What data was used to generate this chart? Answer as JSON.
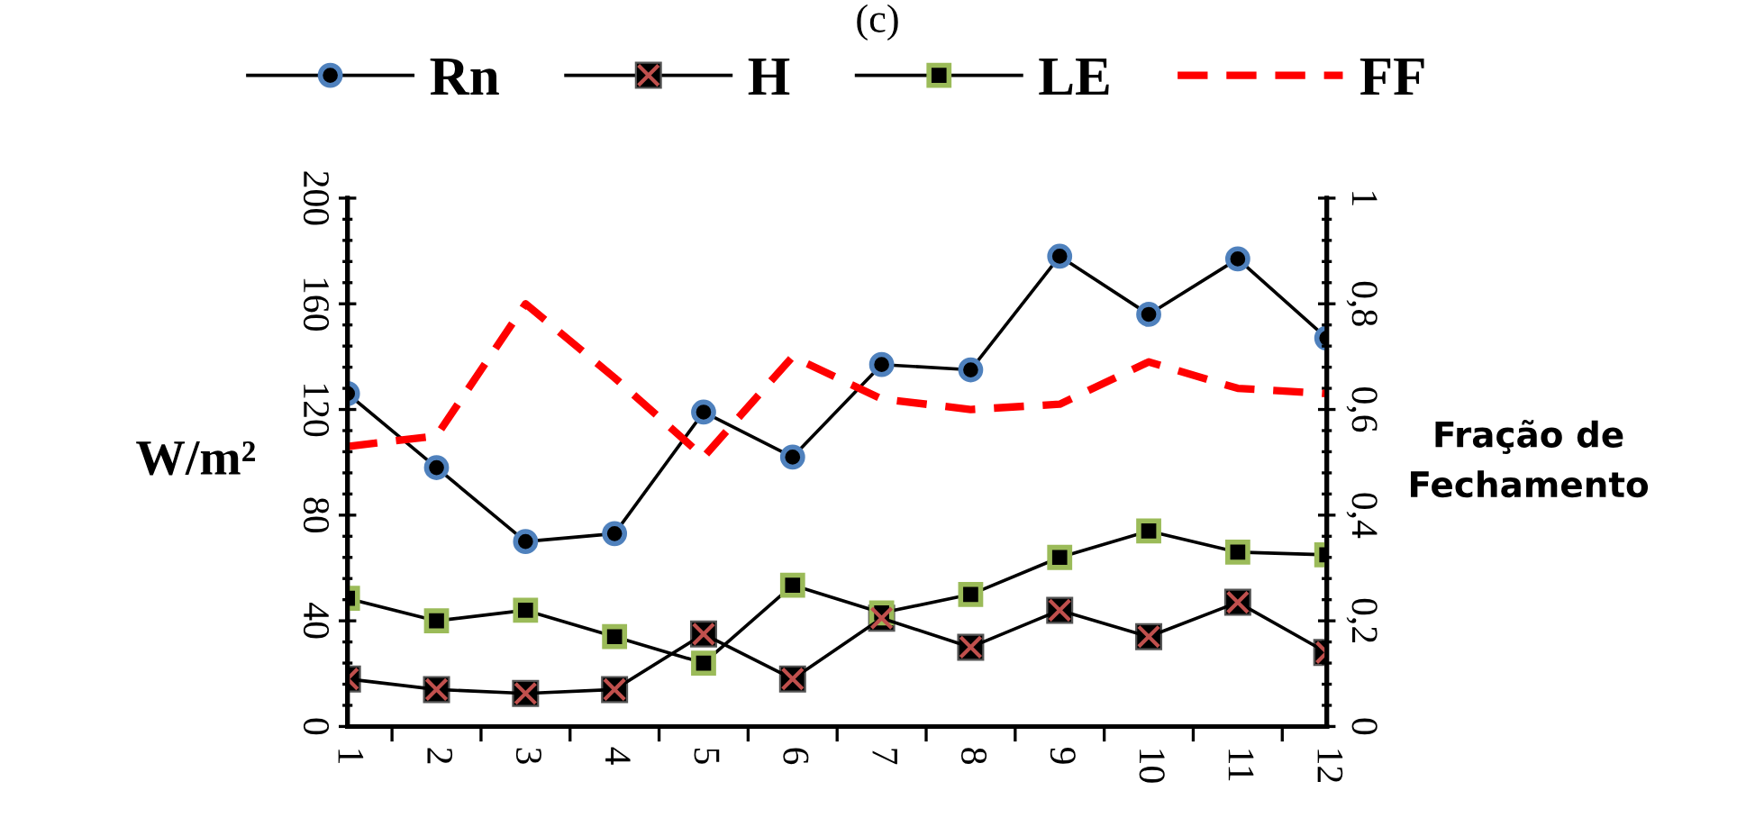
{
  "chart_data": {
    "type": "line",
    "title": "(c)",
    "ylabel": "W/m²",
    "y2label": "Fração de\nFechamento",
    "categories": [
      "1",
      "2",
      "3",
      "4",
      "5",
      "6",
      "7",
      "8",
      "9",
      "10",
      "11",
      "12"
    ],
    "series": [
      {
        "name": "Rn",
        "color": "#4f81bd",
        "marker": "circle",
        "values": [
          126,
          98,
          70,
          73,
          119,
          102,
          137,
          135,
          178,
          156,
          177,
          147
        ]
      },
      {
        "name": "H",
        "color": "#c0504d",
        "marker": "cross",
        "values": [
          18,
          14,
          12.5,
          14,
          35,
          18,
          41,
          30,
          44,
          34,
          47,
          28
        ]
      },
      {
        "name": "LE",
        "color": "#9bbb59",
        "marker": "square",
        "values": [
          48.5,
          40,
          44,
          34,
          24,
          53.5,
          43,
          50,
          64,
          74,
          66,
          65
        ]
      },
      {
        "name": "FF",
        "color": "#ff0000",
        "marker": "none",
        "line_style": "dashed",
        "axis": "y2",
        "values": [
          0.53,
          0.55,
          0.8,
          0.66,
          0.51,
          0.7,
          0.62,
          0.6,
          0.61,
          0.69,
          0.64,
          0.63
        ]
      }
    ],
    "ylim": [
      0,
      200
    ],
    "yticks": [
      0,
      40,
      80,
      120,
      160,
      200
    ],
    "y2lim": [
      0,
      1
    ],
    "y2ticks": [
      0,
      {
        "value": 0.2,
        "label": "0,2"
      },
      {
        "value": 0.4,
        "label": "0,4"
      },
      {
        "value": 0.6,
        "label": "0,6"
      },
      {
        "value": 0.8,
        "label": "0,8"
      },
      1
    ],
    "grid": false,
    "legend": "top"
  }
}
